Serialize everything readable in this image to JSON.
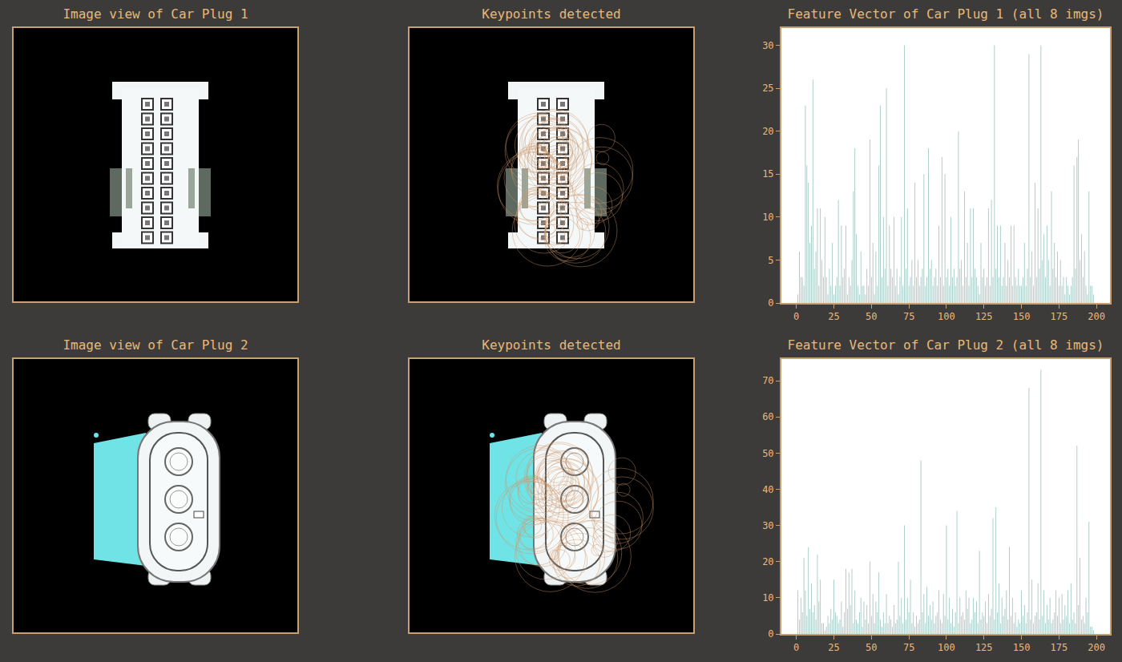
{
  "rows": [
    {
      "image_title": "Image view of Car Plug 1",
      "keypoints_title": "Keypoints detected"
    },
    {
      "image_title": "Image view of Car Plug 2",
      "keypoints_title": "Keypoints detected"
    }
  ],
  "chart_data": [
    {
      "type": "bar",
      "title": "Feature Vector of Car Plug 1 (all 8 imgs)",
      "x": [
        0,
        1,
        2,
        3,
        4,
        5,
        6,
        7,
        8,
        9,
        10,
        11,
        12,
        13,
        14,
        15,
        16,
        17,
        18,
        19,
        20,
        21,
        22,
        23,
        24,
        25,
        26,
        27,
        28,
        29,
        30,
        31,
        32,
        33,
        34,
        35,
        36,
        37,
        38,
        39,
        40,
        41,
        42,
        43,
        44,
        45,
        46,
        47,
        48,
        49,
        50,
        51,
        52,
        53,
        54,
        55,
        56,
        57,
        58,
        59,
        60,
        61,
        62,
        63,
        64,
        65,
        66,
        67,
        68,
        69,
        70,
        71,
        72,
        73,
        74,
        75,
        76,
        77,
        78,
        79,
        80,
        81,
        82,
        83,
        84,
        85,
        86,
        87,
        88,
        89,
        90,
        91,
        92,
        93,
        94,
        95,
        96,
        97,
        98,
        99,
        100,
        101,
        102,
        103,
        104,
        105,
        106,
        107,
        108,
        109,
        110,
        111,
        112,
        113,
        114,
        115,
        116,
        117,
        118,
        119,
        120,
        121,
        122,
        123,
        124,
        125,
        126,
        127,
        128,
        129,
        130,
        131,
        132,
        133,
        134,
        135,
        136,
        137,
        138,
        139,
        140,
        141,
        142,
        143,
        144,
        145,
        146,
        147,
        148,
        149,
        150,
        151,
        152,
        153,
        154,
        155,
        156,
        157,
        158,
        159,
        160,
        161,
        162,
        163,
        164,
        165,
        166,
        167,
        168,
        169,
        170,
        171,
        172,
        173,
        174,
        175,
        176,
        177,
        178,
        179,
        180,
        181,
        182,
        183,
        184,
        185,
        186,
        187,
        188,
        189,
        190,
        191,
        192,
        193,
        194,
        195,
        196,
        197,
        198,
        199
      ],
      "values": [
        0,
        1,
        6,
        3,
        3,
        2,
        23,
        16,
        14,
        7,
        9,
        26,
        4,
        6,
        11,
        2,
        11,
        5,
        3,
        10,
        3,
        1,
        4,
        2,
        7,
        1,
        2,
        3,
        12,
        2,
        9,
        3,
        4,
        9,
        1,
        3,
        2,
        5,
        13,
        18,
        8,
        2,
        1,
        6,
        2,
        2,
        1,
        4,
        2,
        19,
        3,
        7,
        1,
        6,
        2,
        16,
        23,
        3,
        10,
        4,
        25,
        2,
        9,
        4,
        3,
        10,
        2,
        4,
        1,
        3,
        10,
        2,
        30,
        4,
        11,
        2,
        3,
        5,
        2,
        14,
        3,
        5,
        2,
        3,
        4,
        15,
        2,
        3,
        18,
        4,
        5,
        2,
        3,
        4,
        2,
        9,
        3,
        17,
        2,
        15,
        3,
        4,
        2,
        10,
        3,
        4,
        2,
        3,
        20,
        4,
        5,
        2,
        13,
        3,
        7,
        2,
        11,
        3,
        11,
        4,
        3,
        2,
        1,
        7,
        3,
        4,
        2,
        3,
        11,
        2,
        12,
        3,
        30,
        4,
        9,
        3,
        9,
        2,
        3,
        7,
        2,
        5,
        3,
        9,
        2,
        9,
        3,
        2,
        4,
        2,
        2,
        3,
        7,
        2,
        4,
        29,
        3,
        6,
        2,
        14,
        3,
        11,
        4,
        30,
        5,
        8,
        3,
        9,
        5,
        2,
        13,
        4,
        7,
        3,
        6,
        2,
        5,
        2,
        3,
        1,
        3,
        2,
        1,
        2,
        3,
        16,
        4,
        17,
        19,
        5,
        8,
        3,
        6,
        2,
        1,
        13,
        2,
        2,
        1,
        0
      ],
      "color": "#9fc6c0",
      "xlim": [
        -10,
        209
      ],
      "xticks": [
        0,
        25,
        50,
        75,
        100,
        125,
        150,
        175,
        200
      ],
      "ylim": [
        0,
        32
      ],
      "yticks": [
        0,
        5,
        10,
        15,
        20,
        25,
        30
      ],
      "grid": false
    },
    {
      "type": "bar",
      "title": "Feature Vector of Car Plug 2 (all 8 imgs)",
      "x": [
        0,
        1,
        2,
        3,
        4,
        5,
        6,
        7,
        8,
        9,
        10,
        11,
        12,
        13,
        14,
        15,
        16,
        17,
        18,
        19,
        20,
        21,
        22,
        23,
        24,
        25,
        26,
        27,
        28,
        29,
        30,
        31,
        32,
        33,
        34,
        35,
        36,
        37,
        38,
        39,
        40,
        41,
        42,
        43,
        44,
        45,
        46,
        47,
        48,
        49,
        50,
        51,
        52,
        53,
        54,
        55,
        56,
        57,
        58,
        59,
        60,
        61,
        62,
        63,
        64,
        65,
        66,
        67,
        68,
        69,
        70,
        71,
        72,
        73,
        74,
        75,
        76,
        77,
        78,
        79,
        80,
        81,
        82,
        83,
        84,
        85,
        86,
        87,
        88,
        89,
        90,
        91,
        92,
        93,
        94,
        95,
        96,
        97,
        98,
        99,
        100,
        101,
        102,
        103,
        104,
        105,
        106,
        107,
        108,
        109,
        110,
        111,
        112,
        113,
        114,
        115,
        116,
        117,
        118,
        119,
        120,
        121,
        122,
        123,
        124,
        125,
        126,
        127,
        128,
        129,
        130,
        131,
        132,
        133,
        134,
        135,
        136,
        137,
        138,
        139,
        140,
        141,
        142,
        143,
        144,
        145,
        146,
        147,
        148,
        149,
        150,
        151,
        152,
        153,
        154,
        155,
        156,
        157,
        158,
        159,
        160,
        161,
        162,
        163,
        164,
        165,
        166,
        167,
        168,
        169,
        170,
        171,
        172,
        173,
        174,
        175,
        176,
        177,
        178,
        179,
        180,
        181,
        182,
        183,
        184,
        185,
        186,
        187,
        188,
        189,
        190,
        191,
        192,
        193,
        194,
        195,
        196,
        197,
        198,
        199
      ],
      "values": [
        0,
        12,
        4,
        10,
        6,
        21,
        12,
        5,
        24,
        7,
        14,
        6,
        8,
        4,
        22,
        9,
        15,
        3,
        3,
        1,
        2,
        5,
        3,
        7,
        4,
        15,
        6,
        5,
        3,
        4,
        9,
        2,
        6,
        18,
        7,
        17,
        8,
        18,
        3,
        12,
        4,
        3,
        6,
        10,
        2,
        9,
        4,
        8,
        3,
        20,
        5,
        11,
        3,
        9,
        6,
        17,
        4,
        2,
        6,
        3,
        11,
        3,
        5,
        4,
        2,
        8,
        3,
        4,
        20,
        5,
        10,
        3,
        30,
        4,
        10,
        6,
        15,
        3,
        6,
        2,
        5,
        3,
        4,
        48,
        6,
        11,
        3,
        13,
        5,
        8,
        4,
        9,
        3,
        5,
        6,
        12,
        4,
        3,
        11,
        5,
        30,
        4,
        10,
        3,
        7,
        2,
        6,
        34,
        3,
        10,
        5,
        6,
        4,
        12,
        7,
        10,
        3,
        4,
        10,
        6,
        9,
        3,
        23,
        4,
        6,
        5,
        9,
        3,
        11,
        5,
        7,
        32,
        4,
        35,
        6,
        14,
        3,
        10,
        5,
        7,
        12,
        4,
        24,
        5,
        10,
        3,
        6,
        2,
        4,
        3,
        12,
        5,
        8,
        3,
        6,
        68,
        4,
        15,
        3,
        5,
        6,
        14,
        4,
        73,
        5,
        12,
        3,
        8,
        4,
        10,
        3,
        4,
        6,
        12,
        5,
        10,
        3,
        11,
        4,
        8,
        5,
        12,
        3,
        14,
        4,
        6,
        3,
        52,
        8,
        21,
        4,
        5,
        3,
        10,
        6,
        31,
        2,
        2,
        1,
        0
      ],
      "color": "#9fc6c0",
      "xlim": [
        -10,
        209
      ],
      "xticks": [
        0,
        25,
        50,
        75,
        100,
        125,
        150,
        175,
        200
      ],
      "ylim": [
        0,
        76
      ],
      "yticks": [
        0,
        10,
        20,
        30,
        40,
        50,
        60,
        70
      ],
      "grid": false
    }
  ]
}
